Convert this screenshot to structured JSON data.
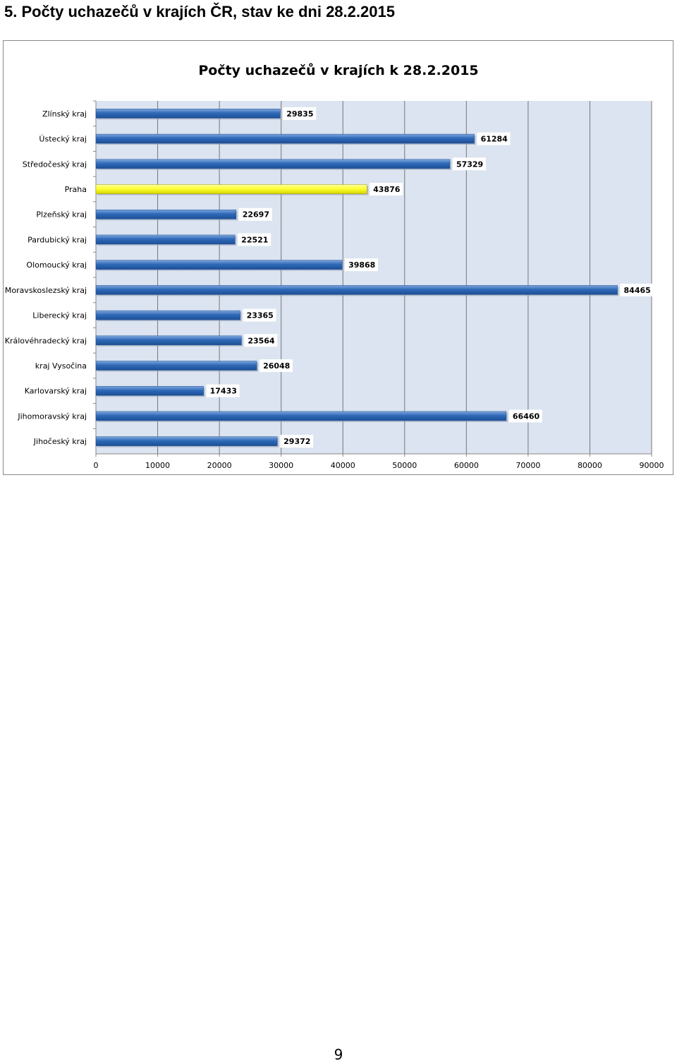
{
  "page": {
    "heading": "5. Počty uchazečů v krajích ČR, stav ke dni 28.2.2015",
    "page_number": "9"
  },
  "colors": {
    "bar": "#2e69b8",
    "bar_highlight": "#ffff33",
    "plot_background": "#dbe4f0",
    "gridline": "#777777"
  },
  "chart_data": {
    "type": "bar",
    "orientation": "horizontal",
    "title": "Počty uchazečů v krajích k 28.2.2015",
    "xlabel": "",
    "ylabel": "",
    "categories": [
      "Zlínský kraj",
      "Ústecký kraj",
      "Středočeský kraj",
      "Praha",
      "Plzeňský kraj",
      "Pardubický kraj",
      "Olomoucký kraj",
      "Moravskoslezský kraj",
      "Liberecký kraj",
      "Královéhradecký kraj",
      "kraj Vysočina",
      "Karlovarský kraj",
      "Jihomoravský kraj",
      "Jihočeský kraj"
    ],
    "values": [
      29835,
      61284,
      57329,
      43876,
      22697,
      22521,
      39868,
      84465,
      23365,
      23564,
      26048,
      17433,
      66460,
      29372
    ],
    "highlight": "Praha",
    "xlim": [
      0,
      90000
    ],
    "xticks": [
      0,
      10000,
      20000,
      30000,
      40000,
      50000,
      60000,
      70000,
      80000,
      90000
    ],
    "xtick_labels": [
      "0",
      "10000",
      "20000",
      "30000",
      "40000",
      "50000",
      "60000",
      "70000",
      "80000",
      "90000"
    ],
    "grid": "vertical",
    "legend": "none"
  }
}
